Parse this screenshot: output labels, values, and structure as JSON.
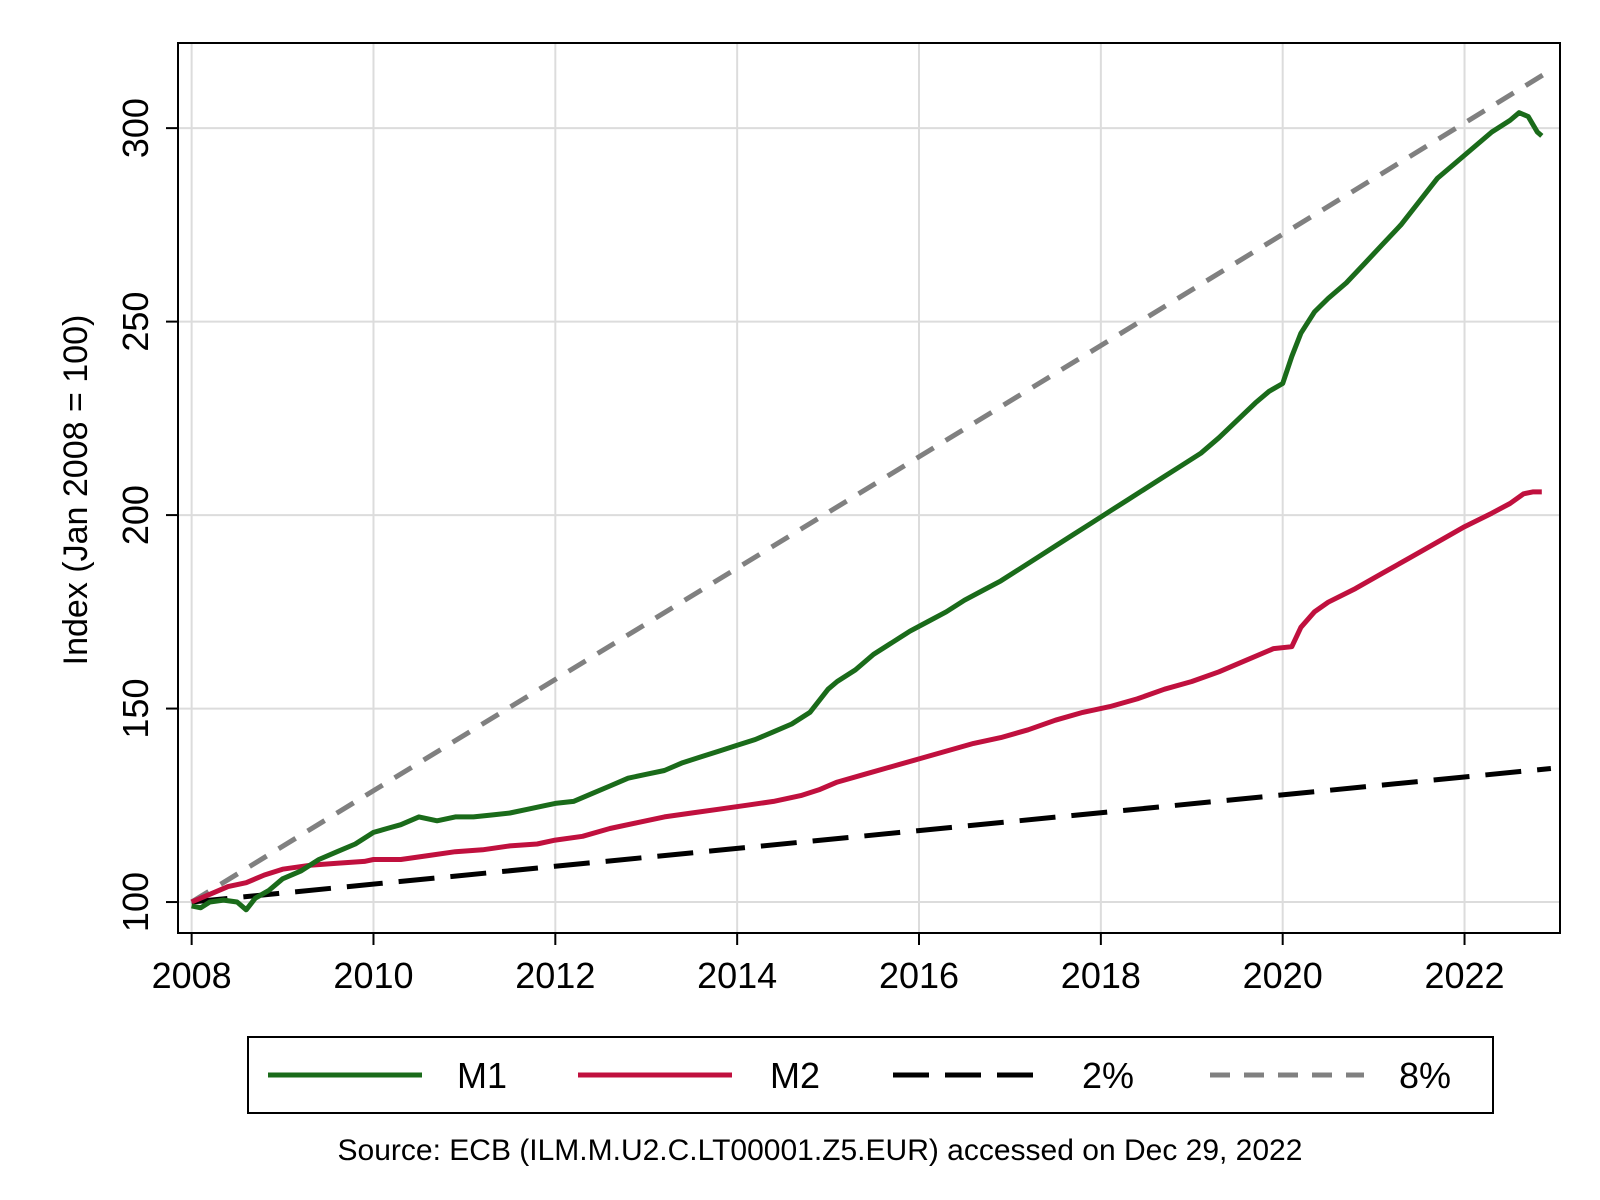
{
  "chart_data": {
    "type": "line",
    "title": "",
    "xlabel": "",
    "ylabel": "Index (Jan 2008 = 100)",
    "xlim": [
      2007.85,
      2023.05
    ],
    "ylim": [
      92,
      322
    ],
    "x_ticks": [
      "2008",
      "2010",
      "2012",
      "2014",
      "2016",
      "2018",
      "2020",
      "2022"
    ],
    "y_ticks": [
      "100",
      "150",
      "200",
      "250",
      "300"
    ],
    "grid": true,
    "legend_position": "bottom",
    "source_note": "Source: ECB (ILM.M.U2.C.LT00001.Z5.EUR) accessed on Dec 29, 2022",
    "series": [
      {
        "name": "M1",
        "color": "#1a6b1a",
        "style": "solid",
        "x": [
          2008.0,
          2008.1,
          2008.2,
          2008.35,
          2008.5,
          2008.6,
          2008.7,
          2008.85,
          2009.0,
          2009.2,
          2009.4,
          2009.6,
          2009.8,
          2010.0,
          2010.15,
          2010.3,
          2010.5,
          2010.7,
          2010.9,
          2011.1,
          2011.3,
          2011.5,
          2011.7,
          2011.9,
          2012.0,
          2012.2,
          2012.4,
          2012.6,
          2012.8,
          2013.0,
          2013.2,
          2013.4,
          2013.6,
          2013.8,
          2014.0,
          2014.2,
          2014.4,
          2014.6,
          2014.8,
          2015.0,
          2015.1,
          2015.3,
          2015.5,
          2015.7,
          2015.9,
          2016.1,
          2016.3,
          2016.5,
          2016.7,
          2016.9,
          2017.1,
          2017.3,
          2017.5,
          2017.7,
          2017.9,
          2018.1,
          2018.3,
          2018.5,
          2018.7,
          2018.9,
          2019.1,
          2019.3,
          2019.5,
          2019.7,
          2019.85,
          2020.0,
          2020.1,
          2020.2,
          2020.35,
          2020.5,
          2020.7,
          2020.9,
          2021.1,
          2021.3,
          2021.5,
          2021.7,
          2021.9,
          2022.1,
          2022.3,
          2022.5,
          2022.6,
          2022.7,
          2022.8,
          2022.85
        ],
        "values": [
          99,
          98.5,
          100,
          100.5,
          100,
          98,
          101,
          103,
          106,
          108,
          111,
          113,
          115,
          118,
          119,
          120,
          122,
          121,
          122,
          122,
          122.5,
          123,
          124,
          125,
          125.5,
          126,
          128,
          130,
          132,
          133,
          134,
          136,
          137.5,
          139,
          140.5,
          142,
          144,
          146,
          149,
          155,
          157,
          160,
          164,
          167,
          170,
          172.5,
          175,
          178,
          180.5,
          183,
          186,
          189,
          192,
          195,
          198,
          201,
          204,
          207,
          210,
          213,
          216,
          220,
          224.5,
          229,
          232,
          234,
          241,
          247,
          252.5,
          256,
          260,
          265,
          270,
          275,
          281,
          287,
          291,
          295,
          299,
          302,
          304,
          303,
          299,
          298
        ]
      },
      {
        "name": "M2",
        "color": "#c0103e",
        "style": "solid",
        "x": [
          2008.0,
          2008.2,
          2008.4,
          2008.6,
          2008.8,
          2009.0,
          2009.3,
          2009.6,
          2009.9,
          2010.0,
          2010.3,
          2010.6,
          2010.9,
          2011.2,
          2011.5,
          2011.8,
          2012.0,
          2012.3,
          2012.6,
          2012.9,
          2013.2,
          2013.5,
          2013.8,
          2014.1,
          2014.4,
          2014.7,
          2014.9,
          2015.1,
          2015.4,
          2015.7,
          2016.0,
          2016.3,
          2016.6,
          2016.9,
          2017.2,
          2017.5,
          2017.8,
          2018.1,
          2018.4,
          2018.7,
          2019.0,
          2019.3,
          2019.6,
          2019.9,
          2020.1,
          2020.2,
          2020.35,
          2020.5,
          2020.8,
          2021.1,
          2021.4,
          2021.7,
          2022.0,
          2022.3,
          2022.5,
          2022.65,
          2022.75,
          2022.85
        ],
        "values": [
          100,
          102,
          104,
          105,
          107,
          108.5,
          109.5,
          110,
          110.5,
          111,
          111,
          112,
          113,
          113.5,
          114.5,
          115,
          116,
          117,
          119,
          120.5,
          122,
          123,
          124,
          125,
          126,
          127.5,
          129,
          131,
          133,
          135,
          137,
          139,
          141,
          142.5,
          144.5,
          147,
          149,
          150.5,
          152.5,
          155,
          157,
          159.5,
          162.5,
          165.5,
          166,
          171,
          175,
          177.5,
          181,
          185,
          189,
          193,
          197,
          200.5,
          203,
          205.5,
          206,
          206
        ]
      },
      {
        "name": "2%",
        "color": "#000000",
        "style": "dashed",
        "x": [
          2008.0,
          2022.95
        ],
        "values": [
          100,
          134.5
        ]
      },
      {
        "name": "8%",
        "color": "#808080",
        "style": "dashed",
        "x": [
          2008.0,
          2022.95
        ],
        "values": [
          100,
          315
        ]
      }
    ]
  }
}
